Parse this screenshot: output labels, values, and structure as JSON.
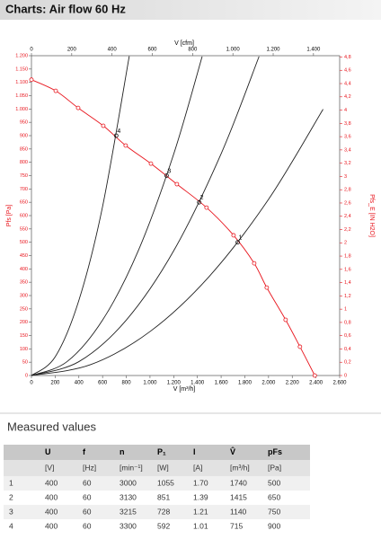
{
  "chart_data": {
    "type": "line",
    "title": "Charts: Air flow 60 Hz",
    "xlabel": "V [m³/h]",
    "x2label": "V [cfm]",
    "ylabel": "Pfs [Pa]",
    "y2label": "Pfs_E [IN H2O]",
    "xlim": [
      0,
      2600
    ],
    "xticks": [
      0,
      200,
      400,
      600,
      800,
      {
        "value": 1000,
        "label": "1.000"
      },
      {
        "value": 1200,
        "label": "1.200"
      },
      {
        "value": 1400,
        "label": "1.400"
      },
      {
        "value": 1600,
        "label": "1.600"
      },
      {
        "value": 1800,
        "label": "1.800"
      },
      {
        "value": 2000,
        "label": "2.000"
      },
      {
        "value": 2200,
        "label": "2.200"
      },
      {
        "value": 2400,
        "label": "2.400"
      },
      {
        "value": 2600,
        "label": "2.600"
      }
    ],
    "x2lim": [
      0,
      1530
    ],
    "x2ticks": [
      0,
      200,
      400,
      600,
      800,
      {
        "value": 1000,
        "label": "1.000"
      },
      {
        "value": 1200,
        "label": "1.200"
      },
      {
        "value": 1400,
        "label": "1.400"
      }
    ],
    "ylim": [
      0,
      1200
    ],
    "yticks": [
      0,
      50,
      100,
      150,
      200,
      250,
      300,
      350,
      400,
      450,
      500,
      550,
      600,
      650,
      700,
      750,
      800,
      850,
      900,
      950,
      {
        "value": 1000,
        "label": "1.000"
      },
      {
        "value": 1050,
        "label": "1.050"
      },
      {
        "value": 1100,
        "label": "1.100"
      },
      {
        "value": 1150,
        "label": "1.150"
      },
      {
        "value": 1200,
        "label": "1.200"
      }
    ],
    "y2lim": [
      0,
      4.82
    ],
    "y2ticks": [
      0,
      {
        "value": 0.2,
        "label": "0,2"
      },
      {
        "value": 0.4,
        "label": "0,4"
      },
      {
        "value": 0.6,
        "label": "0,6"
      },
      {
        "value": 0.8,
        "label": "0,8"
      },
      1,
      {
        "value": 1.2,
        "label": "1,2"
      },
      {
        "value": 1.4,
        "label": "1,4"
      },
      {
        "value": 1.6,
        "label": "1,6"
      },
      {
        "value": 1.8,
        "label": "1,8"
      },
      2,
      {
        "value": 2.2,
        "label": "2,2"
      },
      {
        "value": 2.4,
        "label": "2,4"
      },
      {
        "value": 2.6,
        "label": "2,6"
      },
      {
        "value": 2.8,
        "label": "2,8"
      },
      3,
      {
        "value": 3.2,
        "label": "3,2"
      },
      {
        "value": 3.4,
        "label": "3,4"
      },
      {
        "value": 3.6,
        "label": "3,6"
      },
      {
        "value": 3.8,
        "label": "3,8"
      },
      4,
      {
        "value": 4.2,
        "label": "4,2"
      },
      {
        "value": 4.4,
        "label": "4,4"
      },
      {
        "value": 4.6,
        "label": "4,6"
      },
      {
        "value": 4.8,
        "label": "4,8"
      }
    ],
    "series": [
      {
        "color": "#e8141c",
        "markers": true,
        "x": [
          0,
          205,
          394,
          606,
          795,
          1008,
          1227,
          1477,
          1705,
          1879,
          1985,
          2144,
          2265,
          2390
        ],
        "values": [
          1110,
          1068,
          1004,
          937,
          863,
          795,
          718,
          630,
          526,
          421,
          330,
          209,
          108,
          0
        ]
      },
      {
        "color": "#222222",
        "markers": false,
        "x": [
          0,
          500,
          1000,
          1500,
          2000,
          2460
        ],
        "values": [
          0,
          41,
          165,
          372,
          661,
          999
        ]
      },
      {
        "color": "#222222",
        "markers": false,
        "x": [
          0,
          400,
          800,
          1200,
          1600,
          1920
        ],
        "values": [
          0,
          52,
          208,
          468,
          832,
          1197
        ]
      },
      {
        "color": "#222222",
        "markers": false,
        "x": [
          0,
          300,
          600,
          900,
          1200,
          1440
        ],
        "values": [
          0,
          52,
          208,
          467,
          831,
          1197
        ]
      },
      {
        "color": "#222222",
        "markers": false,
        "x": [
          0,
          200,
          400,
          600,
          825
        ],
        "values": [
          0,
          70,
          282,
          634,
          1198
        ]
      }
    ],
    "operating_points": {
      "labels": [
        "1",
        "2",
        "3",
        "4"
      ],
      "x": [
        1740,
        1415,
        1140,
        715
      ],
      "values": [
        500,
        650,
        750,
        900
      ]
    }
  },
  "table": {
    "title": "Measured values",
    "header": [
      "U",
      "f",
      "n",
      "P₁",
      "I",
      "V̂",
      "pFs"
    ],
    "units": [
      "[V]",
      "[Hz]",
      "[min⁻¹]",
      "[W]",
      "[A]",
      "[m³/h]",
      "[Pa]"
    ],
    "rows": [
      [
        "1",
        "400",
        "60",
        "3000",
        "1055",
        "1.70",
        "1740",
        "500"
      ],
      [
        "2",
        "400",
        "60",
        "3130",
        "851",
        "1.39",
        "1415",
        "650"
      ],
      [
        "3",
        "400",
        "60",
        "3215",
        "728",
        "1.21",
        "1140",
        "750"
      ],
      [
        "4",
        "400",
        "60",
        "3300",
        "592",
        "1.01",
        "715",
        "900"
      ]
    ]
  }
}
